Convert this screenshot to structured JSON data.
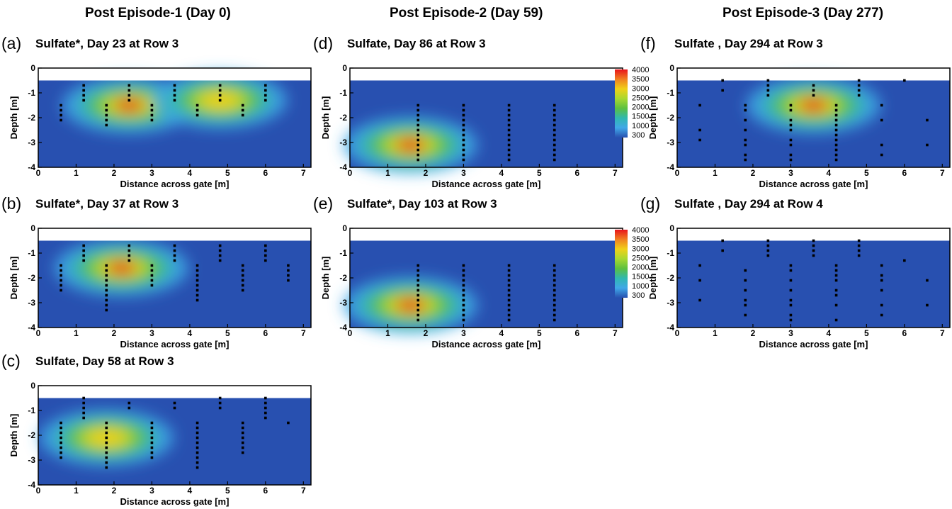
{
  "column_headers": [
    "Post Episode-1 (Day 0)",
    "Post Episode-2 (Day 59)",
    "Post Episode-3 (Day 277)"
  ],
  "colorbar": {
    "labels": [
      "4000",
      "3500",
      "3000",
      "2500",
      "2000",
      "1500",
      "1000",
      "300"
    ],
    "colors": [
      "#e8141c",
      "#f08020",
      "#f0d018",
      "#a8d830",
      "#5cc040",
      "#30b8b0",
      "#40a8e8",
      "#2850b0"
    ]
  },
  "chart_data": [
    {
      "type": "heatmap",
      "letter": "(a)",
      "title": "Sulfate*, Day 23 at Row 3",
      "xlabel": "Distance across gate [m]",
      "ylabel": "Depth [m]",
      "xlim": [
        0,
        7.2
      ],
      "ylim": [
        -4,
        0
      ],
      "xticks": [
        "0",
        "1",
        "2",
        "3",
        "4",
        "5",
        "6",
        "7"
      ],
      "yticks": [
        "0",
        "-1",
        "-2",
        "-3",
        "-4"
      ],
      "hotspots": [
        {
          "x": 2.4,
          "y": -1.5,
          "value": 4000
        },
        {
          "x": 4.8,
          "y": -1.3,
          "value": 3200
        }
      ],
      "sample_columns": [
        {
          "x": 0.6,
          "depths": [
            -1.5,
            -1.7,
            -1.9,
            -2.1
          ]
        },
        {
          "x": 1.2,
          "depths": [
            -0.7,
            -0.9,
            -1.1,
            -1.3
          ]
        },
        {
          "x": 1.8,
          "depths": [
            -1.5,
            -1.7,
            -1.9,
            -2.1,
            -2.3
          ]
        },
        {
          "x": 2.4,
          "depths": [
            -0.7,
            -0.9,
            -1.1,
            -1.3
          ]
        },
        {
          "x": 3.0,
          "depths": [
            -1.5,
            -1.7,
            -1.9,
            -2.1
          ]
        },
        {
          "x": 3.6,
          "depths": [
            -0.7,
            -0.9,
            -1.1,
            -1.3
          ]
        },
        {
          "x": 4.2,
          "depths": [
            -1.5,
            -1.7,
            -1.9
          ]
        },
        {
          "x": 4.8,
          "depths": [
            -0.7,
            -0.9,
            -1.1,
            -1.3
          ]
        },
        {
          "x": 5.4,
          "depths": [
            -1.5,
            -1.7,
            -1.9
          ]
        },
        {
          "x": 6.0,
          "depths": [
            -0.7,
            -0.9,
            -1.1,
            -1.3
          ]
        }
      ]
    },
    {
      "type": "heatmap",
      "letter": "(b)",
      "title": "Sulfate*, Day 37 at Row 3",
      "xlabel": "Distance across gate [m]",
      "ylabel": "Depth [m]",
      "xlim": [
        0,
        7.2
      ],
      "ylim": [
        -4,
        0
      ],
      "xticks": [
        "0",
        "1",
        "2",
        "3",
        "4",
        "5",
        "6",
        "7"
      ],
      "yticks": [
        "0",
        "-1",
        "-2",
        "-3",
        "-4"
      ],
      "hotspots": [
        {
          "x": 2.2,
          "y": -1.6,
          "value": 4000
        }
      ],
      "sample_columns": [
        {
          "x": 0.6,
          "depths": [
            -1.5,
            -1.7,
            -1.9,
            -2.1,
            -2.3,
            -2.5
          ]
        },
        {
          "x": 1.2,
          "depths": [
            -0.7,
            -0.9,
            -1.1,
            -1.3
          ]
        },
        {
          "x": 1.8,
          "depths": [
            -1.5,
            -1.7,
            -1.9,
            -2.1,
            -2.3,
            -2.5,
            -2.7,
            -2.9,
            -3.1,
            -3.3
          ]
        },
        {
          "x": 2.4,
          "depths": [
            -0.7,
            -0.9,
            -1.1,
            -1.3
          ]
        },
        {
          "x": 3.0,
          "depths": [
            -1.5,
            -1.7,
            -1.9,
            -2.1,
            -2.3
          ]
        },
        {
          "x": 3.6,
          "depths": [
            -0.7,
            -0.9,
            -1.1,
            -1.3
          ]
        },
        {
          "x": 4.2,
          "depths": [
            -1.5,
            -1.7,
            -1.9,
            -2.1,
            -2.3,
            -2.5,
            -2.7,
            -2.9
          ]
        },
        {
          "x": 4.8,
          "depths": [
            -0.7,
            -0.9,
            -1.1,
            -1.3
          ]
        },
        {
          "x": 5.4,
          "depths": [
            -1.5,
            -1.7,
            -1.9,
            -2.1,
            -2.3,
            -2.5
          ]
        },
        {
          "x": 6.0,
          "depths": [
            -0.7,
            -0.9,
            -1.1,
            -1.3
          ]
        },
        {
          "x": 6.6,
          "depths": [
            -1.5,
            -1.7,
            -1.9,
            -2.1
          ]
        }
      ]
    },
    {
      "type": "heatmap",
      "letter": "(c)",
      "title": "Sulfate, Day 58 at Row 3",
      "xlabel": "Distance across gate [m]",
      "ylabel": "Depth [m]",
      "xlim": [
        0,
        7.2
      ],
      "ylim": [
        -4,
        0
      ],
      "xticks": [
        "0",
        "1",
        "2",
        "3",
        "4",
        "5",
        "6",
        "7"
      ],
      "yticks": [
        "0",
        "-1",
        "-2",
        "-3",
        "-4"
      ],
      "hotspots": [
        {
          "x": 1.8,
          "y": -2.1,
          "value": 3200
        }
      ],
      "sample_columns": [
        {
          "x": 0.6,
          "depths": [
            -1.5,
            -1.7,
            -1.9,
            -2.1,
            -2.3,
            -2.5,
            -2.7,
            -2.9
          ]
        },
        {
          "x": 1.2,
          "depths": [
            -0.5,
            -0.7,
            -0.9,
            -1.1,
            -1.3
          ]
        },
        {
          "x": 1.8,
          "depths": [
            -1.5,
            -1.7,
            -1.9,
            -2.1,
            -2.3,
            -2.5,
            -2.7,
            -2.9,
            -3.1,
            -3.3
          ]
        },
        {
          "x": 2.4,
          "depths": [
            -0.7,
            -0.9
          ]
        },
        {
          "x": 3.0,
          "depths": [
            -1.5,
            -1.7,
            -1.9,
            -2.1,
            -2.3,
            -2.5,
            -2.7,
            -2.9
          ]
        },
        {
          "x": 3.6,
          "depths": [
            -0.7,
            -0.9
          ]
        },
        {
          "x": 4.2,
          "depths": [
            -1.5,
            -1.7,
            -1.9,
            -2.1,
            -2.3,
            -2.5,
            -2.7,
            -2.9,
            -3.1,
            -3.3
          ]
        },
        {
          "x": 4.8,
          "depths": [
            -0.5,
            -0.7,
            -0.9
          ]
        },
        {
          "x": 5.4,
          "depths": [
            -1.5,
            -1.7,
            -1.9,
            -2.1,
            -2.3,
            -2.5,
            -2.7
          ]
        },
        {
          "x": 6.0,
          "depths": [
            -0.5,
            -0.7,
            -0.9,
            -1.1,
            -1.3
          ]
        },
        {
          "x": 6.6,
          "depths": [
            -1.5
          ]
        }
      ]
    },
    {
      "type": "heatmap",
      "letter": "(d)",
      "title": "Sulfate, Day 86 at Row 3",
      "xlabel": "Distance across gate [m]",
      "ylabel": "Depth [m]",
      "xlim": [
        0,
        7.2
      ],
      "ylim": [
        -4,
        0
      ],
      "xticks": [
        "0",
        "1",
        "2",
        "3",
        "4",
        "5",
        "6",
        "7"
      ],
      "yticks": [
        "0",
        "-1",
        "-2",
        "-3",
        "-4"
      ],
      "hotspots": [
        {
          "x": 1.6,
          "y": -3.1,
          "value": 4000
        }
      ],
      "sample_columns": [
        {
          "x": 1.8,
          "depths": [
            -1.5,
            -1.7,
            -1.9,
            -2.1,
            -2.3,
            -2.5,
            -2.7,
            -2.9,
            -3.1,
            -3.3,
            -3.5,
            -3.7
          ]
        },
        {
          "x": 3.0,
          "depths": [
            -1.5,
            -1.7,
            -1.9,
            -2.1,
            -2.3,
            -2.5,
            -2.7,
            -2.9,
            -3.1,
            -3.3,
            -3.5,
            -3.7
          ]
        },
        {
          "x": 4.2,
          "depths": [
            -1.5,
            -1.7,
            -1.9,
            -2.1,
            -2.3,
            -2.5,
            -2.7,
            -2.9,
            -3.1,
            -3.3,
            -3.5,
            -3.7
          ]
        },
        {
          "x": 5.4,
          "depths": [
            -1.5,
            -1.7,
            -1.9,
            -2.1,
            -2.3,
            -2.5,
            -2.7,
            -2.9,
            -3.1,
            -3.3,
            -3.5,
            -3.7
          ]
        }
      ]
    },
    {
      "type": "heatmap",
      "letter": "(e)",
      "title": "Sulfate*, Day 103 at Row 3",
      "xlabel": "Distance across gate [m]",
      "ylabel": "Depth [m]",
      "xlim": [
        0,
        7.2
      ],
      "ylim": [
        -4,
        0
      ],
      "xticks": [
        "0",
        "1",
        "2",
        "3",
        "4",
        "5",
        "6",
        "7"
      ],
      "yticks": [
        "0",
        "-1",
        "-2",
        "-3",
        "-4"
      ],
      "hotspots": [
        {
          "x": 1.6,
          "y": -3.1,
          "value": 4000
        }
      ],
      "sample_columns": [
        {
          "x": 1.8,
          "depths": [
            -1.5,
            -1.7,
            -1.9,
            -2.1,
            -2.3,
            -2.5,
            -2.7,
            -2.9,
            -3.1,
            -3.3,
            -3.5,
            -3.7
          ]
        },
        {
          "x": 3.0,
          "depths": [
            -1.5,
            -1.7,
            -1.9,
            -2.1,
            -2.3,
            -2.5,
            -2.7,
            -2.9,
            -3.1,
            -3.3,
            -3.5,
            -3.7
          ]
        },
        {
          "x": 4.2,
          "depths": [
            -1.5,
            -1.7,
            -1.9,
            -2.1,
            -2.3,
            -2.5,
            -2.7,
            -2.9,
            -3.1,
            -3.3,
            -3.5,
            -3.7
          ]
        },
        {
          "x": 5.4,
          "depths": [
            -1.5,
            -1.7,
            -1.9,
            -2.1,
            -2.3,
            -2.5,
            -2.7,
            -2.9,
            -3.1,
            -3.3,
            -3.5,
            -3.7
          ]
        }
      ]
    },
    {
      "type": "heatmap",
      "letter": "(f)",
      "title": "Sulfate , Day 294 at Row 3",
      "xlabel": "Distance across gate [m]",
      "ylabel": "Depth [m]",
      "xlim": [
        0,
        7.2
      ],
      "ylim": [
        -4,
        0
      ],
      "xticks": [
        "0",
        "1",
        "2",
        "3",
        "4",
        "5",
        "6",
        "7"
      ],
      "yticks": [
        "0",
        "-1",
        "-2",
        "-3",
        "-4"
      ],
      "hotspots": [
        {
          "x": 3.6,
          "y": -1.5,
          "value": 4000
        }
      ],
      "sample_columns": [
        {
          "x": 0.6,
          "depths": [
            -1.5,
            -2.5,
            -2.9
          ]
        },
        {
          "x": 1.2,
          "depths": [
            -0.5,
            -0.9
          ]
        },
        {
          "x": 1.8,
          "depths": [
            -1.5,
            -1.7,
            -2.1,
            -2.5,
            -2.9,
            -3.1,
            -3.5,
            -3.7
          ]
        },
        {
          "x": 2.4,
          "depths": [
            -0.5,
            -0.7,
            -0.9,
            -1.1
          ]
        },
        {
          "x": 3.0,
          "depths": [
            -1.5,
            -1.7,
            -2.1,
            -2.3,
            -2.5,
            -2.9,
            -3.1,
            -3.5,
            -3.7
          ]
        },
        {
          "x": 3.6,
          "depths": [
            -0.7,
            -0.9,
            -1.1
          ]
        },
        {
          "x": 4.2,
          "depths": [
            -1.5,
            -1.7,
            -1.9,
            -2.1,
            -2.3,
            -2.5,
            -2.7,
            -2.9,
            -3.1,
            -3.3,
            -3.5,
            -3.7
          ]
        },
        {
          "x": 4.8,
          "depths": [
            -0.5,
            -0.7,
            -0.9,
            -1.1
          ]
        },
        {
          "x": 5.4,
          "depths": [
            -1.5,
            -2.1,
            -3.1,
            -3.5
          ]
        },
        {
          "x": 6.0,
          "depths": [
            -0.5
          ]
        },
        {
          "x": 6.6,
          "depths": [
            -2.1,
            -3.1
          ]
        }
      ]
    },
    {
      "type": "heatmap",
      "letter": "(g)",
      "title": "Sulfate , Day 294 at Row 4",
      "xlabel": "Distance across gate [m]",
      "ylabel": "Depth [m]",
      "xlim": [
        0,
        7.2
      ],
      "ylim": [
        -4,
        0
      ],
      "xticks": [
        "0",
        "1",
        "2",
        "3",
        "4",
        "5",
        "6",
        "7"
      ],
      "yticks": [
        "0",
        "-1",
        "-2",
        "-3",
        "-4"
      ],
      "hotspots": [],
      "sample_columns": [
        {
          "x": 0.6,
          "depths": [
            -1.5,
            -2.1,
            -2.9
          ]
        },
        {
          "x": 1.2,
          "depths": [
            -0.5,
            -0.9
          ]
        },
        {
          "x": 1.8,
          "depths": [
            -1.7,
            -2.1,
            -2.5,
            -2.9,
            -3.1,
            -3.5
          ]
        },
        {
          "x": 2.4,
          "depths": [
            -0.5,
            -0.7,
            -0.9,
            -1.1
          ]
        },
        {
          "x": 3.0,
          "depths": [
            -1.5,
            -1.7,
            -2.1,
            -2.5,
            -2.9,
            -3.1,
            -3.5,
            -3.7
          ]
        },
        {
          "x": 3.6,
          "depths": [
            -0.5,
            -0.7,
            -0.9,
            -1.1
          ]
        },
        {
          "x": 4.2,
          "depths": [
            -1.5,
            -1.7,
            -1.9,
            -2.1,
            -2.5,
            -2.7,
            -3.1,
            -3.7
          ]
        },
        {
          "x": 4.8,
          "depths": [
            -0.5,
            -0.7,
            -0.9,
            -1.1
          ]
        },
        {
          "x": 5.4,
          "depths": [
            -1.5,
            -1.9,
            -2.1,
            -2.5,
            -3.1,
            -3.5
          ]
        },
        {
          "x": 6.0,
          "depths": [
            -1.3
          ]
        },
        {
          "x": 6.6,
          "depths": [
            -2.1,
            -3.1
          ]
        }
      ]
    }
  ]
}
